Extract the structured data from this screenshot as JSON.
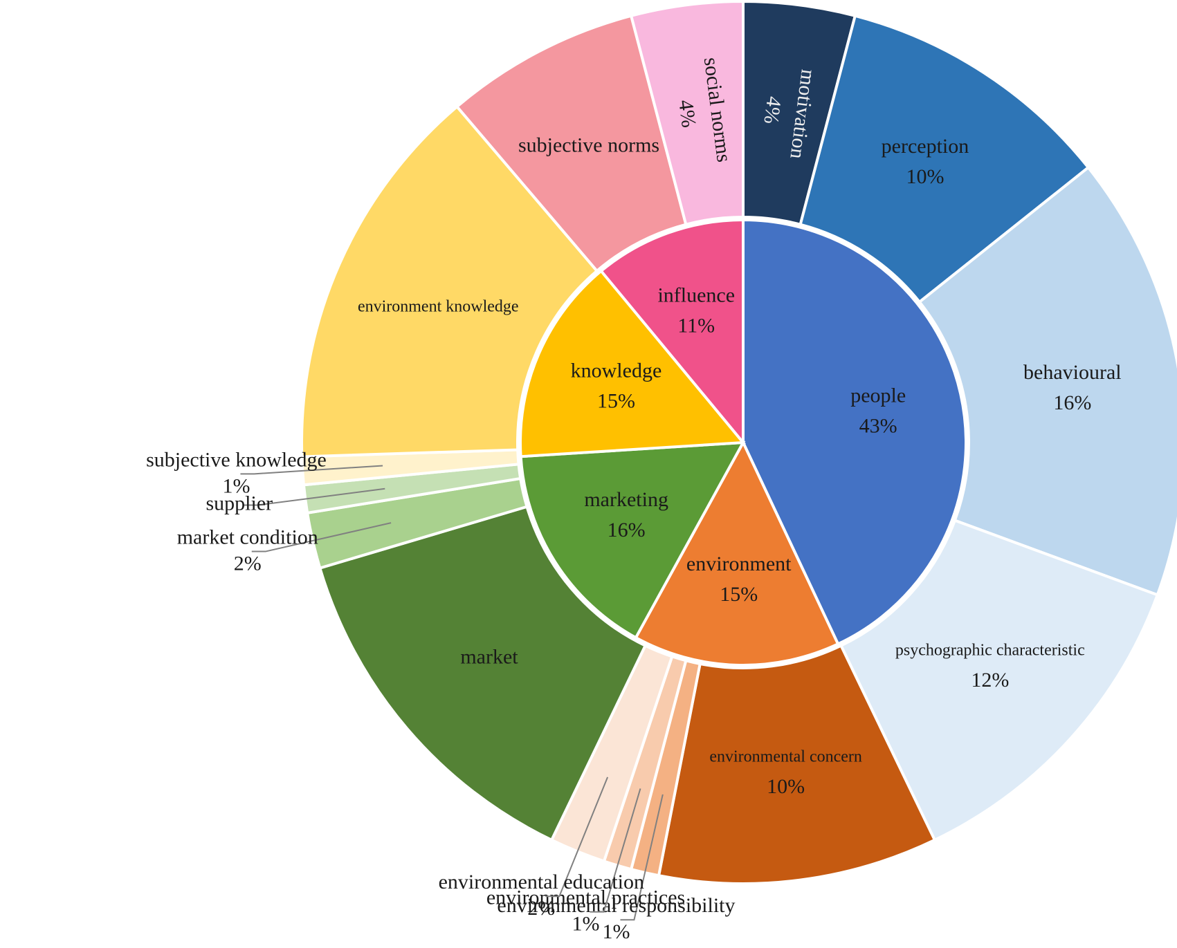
{
  "chart_data": {
    "type": "sunburst",
    "rings": [
      {
        "categories": [
          "people",
          "environment",
          "marketing",
          "knowledge",
          "influence"
        ],
        "values": [
          43,
          15,
          16,
          15,
          11
        ],
        "value_labels": [
          "43%",
          "15%",
          "16%",
          "15%",
          "11%"
        ],
        "colors": [
          "#4472c4",
          "#ed7d31",
          "#5b9b36",
          "#ffc000",
          "#f0528a"
        ]
      },
      {
        "categories": [
          "motivation",
          "perception",
          "behavioural",
          "psychographic characteristic",
          "environmental concern",
          "environmental responsibility",
          "environmental practices",
          "environmental education",
          "market",
          "market condition",
          "supplier",
          "subjective knowledge",
          "environment knowledge",
          "subjective norms",
          "social norms"
        ],
        "values": [
          4,
          10,
          16,
          12,
          10,
          1,
          1,
          2,
          13,
          2,
          1,
          1,
          14,
          7,
          4
        ],
        "value_labels": [
          "4%",
          "10%",
          "16%",
          "12%",
          "10%",
          "1%",
          "1%",
          "2%",
          null,
          "2%",
          null,
          "1%",
          null,
          null,
          "4%"
        ],
        "colors": [
          "#1f3b5e",
          "#2e75b6",
          "#bdd7ee",
          "#deebf7",
          "#c55a11",
          "#f4b183",
          "#f8cbad",
          "#fbe5d6",
          "#548235",
          "#a9d18e",
          "#c5e0b4",
          "#fff2cc",
          "#ffd966",
          "#f4979f",
          "#f9b8de"
        ]
      }
    ]
  }
}
